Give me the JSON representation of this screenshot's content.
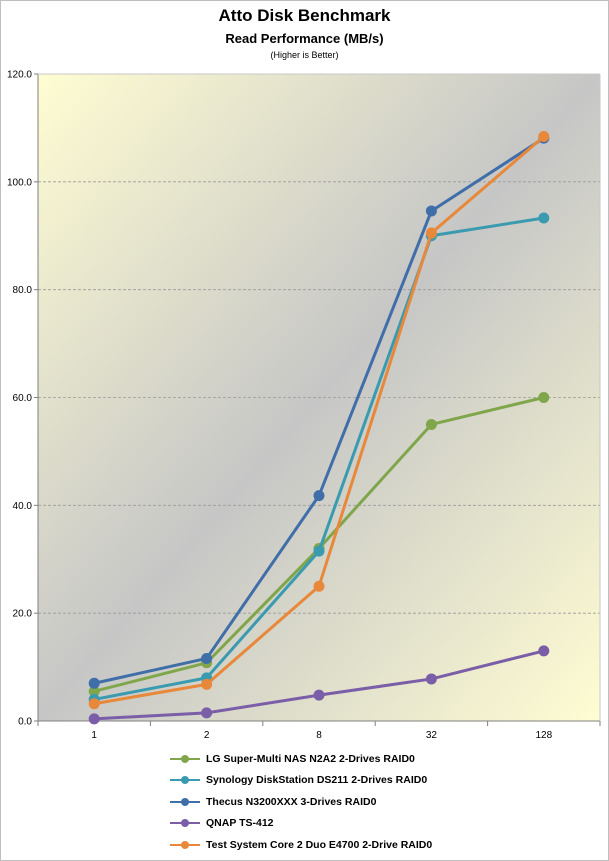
{
  "chart_data": {
    "type": "line",
    "title": "Atto Disk Benchmark",
    "subtitle": "Read Performance (MB/s)",
    "note": "(Higher is Better)",
    "categories": [
      "1",
      "2",
      "8",
      "32",
      "128"
    ],
    "ylim": [
      0,
      120
    ],
    "yticks": [
      "0.0",
      "20.0",
      "40.0",
      "60.0",
      "80.0",
      "100.0",
      "120.0"
    ],
    "grid": true,
    "legend_position": "bottom",
    "series": [
      {
        "name": "LG Super-Multi NAS N2A2 2-Drives RAID0",
        "color": "#7fa64a",
        "values": [
          5.5,
          10.8,
          32.0,
          55.0,
          60.0
        ]
      },
      {
        "name": "Synology DiskStation DS211 2-Drives RAID0",
        "color": "#3a9bb0",
        "values": [
          4.0,
          8.0,
          31.5,
          90.0,
          93.3
        ]
      },
      {
        "name": "Thecus N3200XXX 3-Drives RAID0",
        "color": "#3f6ea8",
        "values": [
          7.0,
          11.6,
          41.8,
          94.6,
          108.1
        ]
      },
      {
        "name": "QNAP TS-412",
        "color": "#7b5ea8",
        "values": [
          0.4,
          1.5,
          4.8,
          7.8,
          13.0
        ]
      },
      {
        "name": "Test System Core 2 Duo E4700 2-Drive RAID0",
        "color": "#e8883a",
        "values": [
          3.2,
          6.8,
          25.0,
          90.5,
          108.4
        ]
      }
    ]
  }
}
